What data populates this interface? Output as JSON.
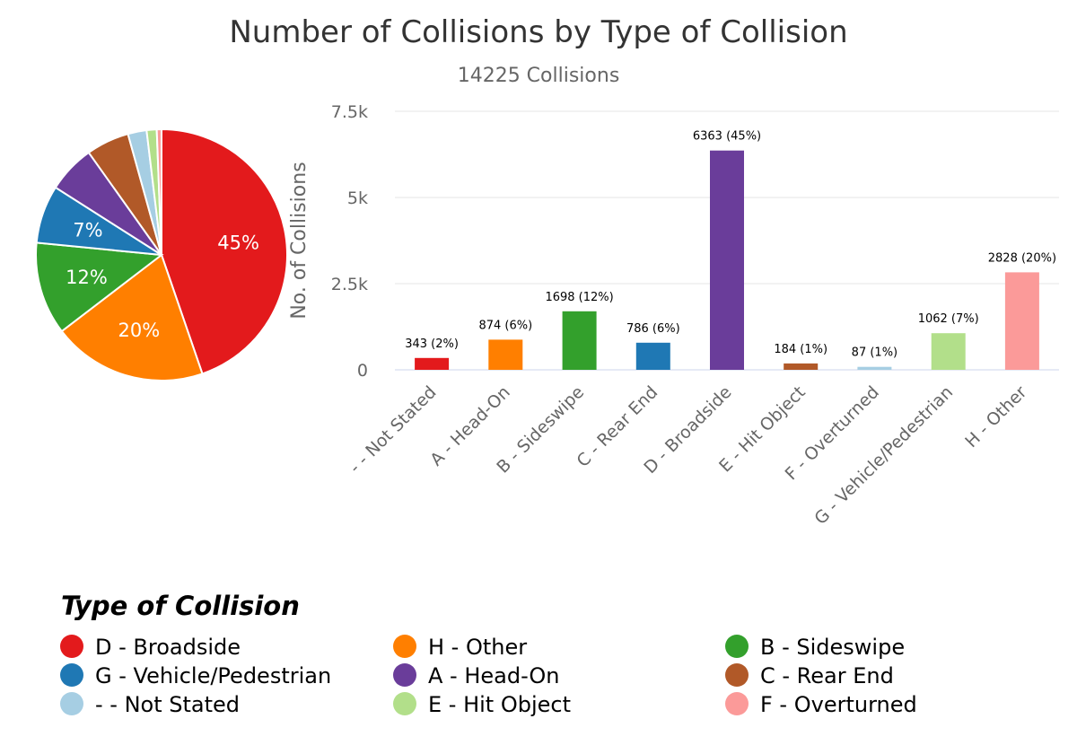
{
  "chart_data": {
    "title": "Number of Collisions by Type of Collision",
    "subtitle": "14225 Collisions",
    "pie": {
      "type": "pie",
      "slices": [
        {
          "label": "D - Broadside",
          "value": 6363,
          "percent_label": "45%",
          "color": "#e31a1c"
        },
        {
          "label": "H - Other",
          "value": 2828,
          "percent_label": "20%",
          "color": "#ff7f00"
        },
        {
          "label": "B - Sideswipe",
          "value": 1698,
          "percent_label": "12%",
          "color": "#33a02c"
        },
        {
          "label": "G - Vehicle/Pedestrian",
          "value": 1062,
          "percent_label": "7%",
          "color": "#1f78b4"
        },
        {
          "label": "A - Head-On",
          "value": 874,
          "percent_label": "",
          "color": "#6a3d9a"
        },
        {
          "label": "C - Rear End",
          "value": 786,
          "percent_label": "",
          "color": "#b15928"
        },
        {
          "label": "- - Not Stated",
          "value": 343,
          "percent_label": "",
          "color": "#a6cee3"
        },
        {
          "label": "E - Hit Object",
          "value": 184,
          "percent_label": "",
          "color": "#b2df8a"
        },
        {
          "label": "F - Overturned",
          "value": 87,
          "percent_label": "",
          "color": "#fb9a99"
        }
      ]
    },
    "bar": {
      "type": "bar",
      "ylabel": "No. of Collisions",
      "ylim": [
        0,
        7500
      ],
      "yticks": [
        {
          "value": 0,
          "label": "0"
        },
        {
          "value": 2500,
          "label": "2.5k"
        },
        {
          "value": 5000,
          "label": "5k"
        },
        {
          "value": 7500,
          "label": "7.5k"
        }
      ],
      "grid": true,
      "categories": [
        "- - Not Stated",
        "A - Head-On",
        "B - Sideswipe",
        "C - Rear End",
        "D - Broadside",
        "E - Hit Object",
        "F - Overturned",
        "G - Vehicle/Pedestrian",
        "H - Other"
      ],
      "values": [
        343,
        874,
        1698,
        786,
        6363,
        184,
        87,
        1062,
        2828
      ],
      "data_labels": [
        "343 (2%)",
        "874 (6%)",
        "1698 (12%)",
        "786 (6%)",
        "6363 (45%)",
        "184 (1%)",
        "87 (1%)",
        "1062 (7%)",
        "2828 (20%)"
      ],
      "colors": [
        "#e31a1c",
        "#ff7f00",
        "#33a02c",
        "#1f78b4",
        "#6a3d9a",
        "#b15928",
        "#a6cee3",
        "#b2df8a",
        "#fb9a99"
      ]
    },
    "legend": {
      "title": "Type of Collision",
      "placement": "bottom-left",
      "items": [
        {
          "label": "D - Broadside",
          "color": "#e31a1c"
        },
        {
          "label": "H - Other",
          "color": "#ff7f00"
        },
        {
          "label": "B - Sideswipe",
          "color": "#33a02c"
        },
        {
          "label": "G - Vehicle/Pedestrian",
          "color": "#1f78b4"
        },
        {
          "label": "A - Head-On",
          "color": "#6a3d9a"
        },
        {
          "label": "C - Rear End",
          "color": "#b15928"
        },
        {
          "label": "- - Not Stated",
          "color": "#a6cee3"
        },
        {
          "label": "E - Hit Object",
          "color": "#b2df8a"
        },
        {
          "label": "F - Overturned",
          "color": "#fb9a99"
        }
      ]
    }
  }
}
